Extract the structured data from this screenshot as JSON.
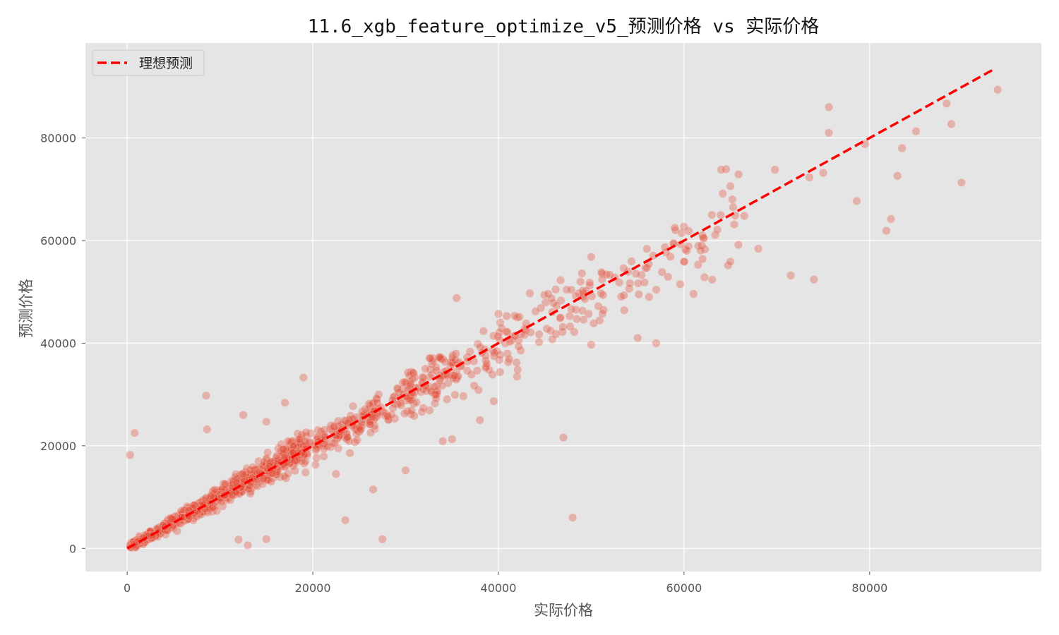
{
  "chart_data": {
    "type": "scatter",
    "title": "11.6_xgb_feature_optimize_v5_预测价格 vs 实际价格",
    "xlabel": "实际价格",
    "ylabel": "预测价格",
    "xlim": [
      -4500,
      98500
    ],
    "ylim": [
      -4500,
      98500
    ],
    "x_ticks": [
      0,
      20000,
      40000,
      60000,
      80000
    ],
    "y_ticks": [
      0,
      20000,
      40000,
      60000,
      80000
    ],
    "grid": true,
    "legend_position": "top-left",
    "colors": {
      "plot_bg": "#e5e5e5",
      "grid": "#ffffff",
      "points": "#e24a33",
      "ideal_line": "#ff0000"
    },
    "ideal_line": {
      "name": "理想预测",
      "x": [
        0,
        93500
      ],
      "y": [
        0,
        93500
      ]
    },
    "scatter_series": {
      "point_count": 1200,
      "sample_outliers": [
        [
          300,
          18200
        ],
        [
          800,
          22500
        ],
        [
          8500,
          29800
        ],
        [
          8600,
          23200
        ],
        [
          12500,
          26000
        ],
        [
          19000,
          33300
        ],
        [
          27500,
          1800
        ],
        [
          48000,
          6000
        ],
        [
          47000,
          21600
        ],
        [
          30000,
          15200
        ],
        [
          23500,
          5500
        ],
        [
          35500,
          48800
        ],
        [
          55000,
          41000
        ],
        [
          57000,
          40000
        ],
        [
          64000,
          73800
        ],
        [
          68000,
          58400
        ],
        [
          71500,
          53200
        ],
        [
          74000,
          52400
        ],
        [
          75600,
          86000
        ],
        [
          75600,
          81000
        ],
        [
          78600,
          67700
        ],
        [
          79500,
          78800
        ],
        [
          81800,
          61900
        ],
        [
          82300,
          64200
        ],
        [
          83000,
          72600
        ],
        [
          83500,
          78000
        ],
        [
          85000,
          81300
        ],
        [
          88300,
          86700
        ],
        [
          88800,
          82700
        ],
        [
          89900,
          71300
        ],
        [
          93800,
          89400
        ],
        [
          50000,
          56800
        ],
        [
          59000,
          62500
        ],
        [
          60000,
          62700
        ],
        [
          66500,
          64800
        ],
        [
          69800,
          73800
        ],
        [
          75000,
          73200
        ],
        [
          73500,
          72300
        ],
        [
          65000,
          70600
        ],
        [
          63000,
          65000
        ],
        [
          62000,
          56400
        ],
        [
          65000,
          55900
        ],
        [
          60000,
          55900
        ],
        [
          56000,
          58400
        ],
        [
          49000,
          53600
        ],
        [
          50000,
          39700
        ],
        [
          44000,
          46200
        ],
        [
          40000,
          45700
        ],
        [
          38000,
          25000
        ],
        [
          34000,
          20900
        ],
        [
          26500,
          11500
        ],
        [
          22500,
          14500
        ],
        [
          15000,
          1800
        ],
        [
          12000,
          1700
        ],
        [
          13000,
          600
        ],
        [
          17000,
          28400
        ],
        [
          15000,
          24700
        ],
        [
          35000,
          21300
        ],
        [
          39500,
          28700
        ],
        [
          42000,
          33500
        ]
      ]
    }
  }
}
